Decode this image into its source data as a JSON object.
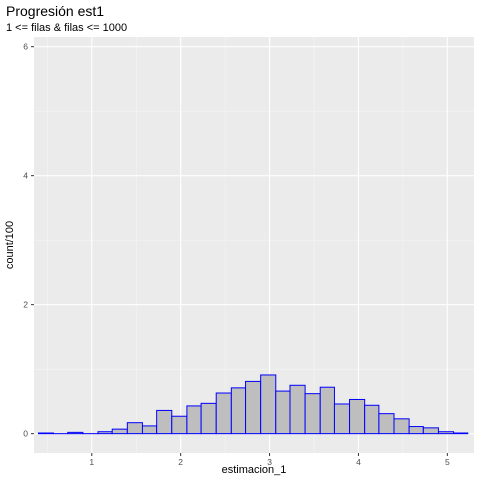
{
  "chart_data": {
    "type": "bar",
    "title": "Progresión est1",
    "subtitle": "1 <= filas & filas <= 1000",
    "xlabel": "estimacion_1",
    "ylabel": "count/100",
    "xlim": [
      0.35,
      5.3
    ],
    "ylim": [
      -0.3,
      6.15
    ],
    "x_ticks": [
      1,
      2,
      3,
      4,
      5
    ],
    "y_ticks": [
      0,
      2,
      4,
      6
    ],
    "grid": true,
    "bin_width": 0.1666,
    "bins": [
      {
        "x0": 0.4,
        "x1": 0.57,
        "value": 0.01
      },
      {
        "x0": 0.57,
        "x1": 0.73,
        "value": 0.0
      },
      {
        "x0": 0.73,
        "x1": 0.9,
        "value": 0.02
      },
      {
        "x0": 0.9,
        "x1": 1.07,
        "value": 0.0
      },
      {
        "x0": 1.07,
        "x1": 1.23,
        "value": 0.03
      },
      {
        "x0": 1.23,
        "x1": 1.4,
        "value": 0.07
      },
      {
        "x0": 1.4,
        "x1": 1.57,
        "value": 0.17
      },
      {
        "x0": 1.57,
        "x1": 1.73,
        "value": 0.12
      },
      {
        "x0": 1.73,
        "x1": 1.9,
        "value": 0.36
      },
      {
        "x0": 1.9,
        "x1": 2.07,
        "value": 0.27
      },
      {
        "x0": 2.07,
        "x1": 2.23,
        "value": 0.43
      },
      {
        "x0": 2.23,
        "x1": 2.4,
        "value": 0.47
      },
      {
        "x0": 2.4,
        "x1": 2.57,
        "value": 0.63
      },
      {
        "x0": 2.57,
        "x1": 2.73,
        "value": 0.71
      },
      {
        "x0": 2.73,
        "x1": 2.9,
        "value": 0.81
      },
      {
        "x0": 2.9,
        "x1": 3.07,
        "value": 0.91
      },
      {
        "x0": 3.07,
        "x1": 3.23,
        "value": 0.66
      },
      {
        "x0": 3.23,
        "x1": 3.4,
        "value": 0.75
      },
      {
        "x0": 3.4,
        "x1": 3.57,
        "value": 0.62
      },
      {
        "x0": 3.57,
        "x1": 3.73,
        "value": 0.72
      },
      {
        "x0": 3.73,
        "x1": 3.9,
        "value": 0.46
      },
      {
        "x0": 3.9,
        "x1": 4.07,
        "value": 0.53
      },
      {
        "x0": 4.07,
        "x1": 4.23,
        "value": 0.44
      },
      {
        "x0": 4.23,
        "x1": 4.4,
        "value": 0.31
      },
      {
        "x0": 4.4,
        "x1": 4.57,
        "value": 0.23
      },
      {
        "x0": 4.57,
        "x1": 4.73,
        "value": 0.11
      },
      {
        "x0": 4.73,
        "x1": 4.9,
        "value": 0.09
      },
      {
        "x0": 4.9,
        "x1": 5.07,
        "value": 0.03
      },
      {
        "x0": 5.07,
        "x1": 5.23,
        "value": 0.01
      }
    ],
    "colors": {
      "panel_background": "#ebebeb",
      "grid_major": "#ffffff",
      "grid_minor": "#f5f5f5",
      "bar_fill": "#bebebe",
      "bar_outline": "#0000ff",
      "tick_text": "#4d4d4d"
    }
  }
}
